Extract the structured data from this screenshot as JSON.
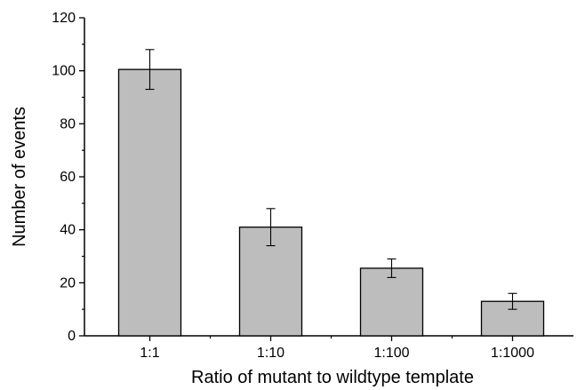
{
  "chart_data": {
    "type": "bar",
    "title": "",
    "xlabel": "Ratio of mutant to wildtype template",
    "ylabel": "Number of events",
    "categories": [
      "1:1",
      "1:10",
      "1:100",
      "1:1000"
    ],
    "values": [
      100.5,
      41,
      25.5,
      13
    ],
    "errors": [
      7.5,
      7,
      3.5,
      3
    ],
    "ylim": [
      0,
      120
    ],
    "yticks": [
      "0",
      "20",
      "40",
      "60",
      "80",
      "100",
      "120"
    ],
    "ytick_values": [
      0,
      20,
      40,
      60,
      80,
      100,
      120
    ],
    "grid": false,
    "legend": "none",
    "colors": {
      "bar_fill": "#bdbdbd",
      "bar_stroke": "#000000",
      "axis": "#000000"
    }
  }
}
